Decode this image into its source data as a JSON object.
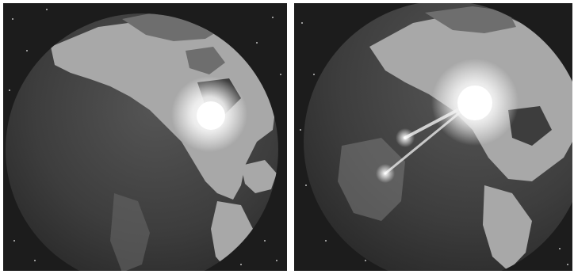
{
  "image": {
    "panels": [
      {
        "scene": "earth-from-space",
        "highlight": "single-glow-over-north-america"
      },
      {
        "scene": "earth-from-space",
        "highlight": "glow-with-two-beams-over-pacific"
      }
    ]
  },
  "colors": {
    "background": "#ffffff",
    "space": "#1c1c1c",
    "ocean": "#3d3d3d",
    "land": "#a8a8a8",
    "land_dark": "#6e6e6e",
    "glow": "#ffffff"
  }
}
